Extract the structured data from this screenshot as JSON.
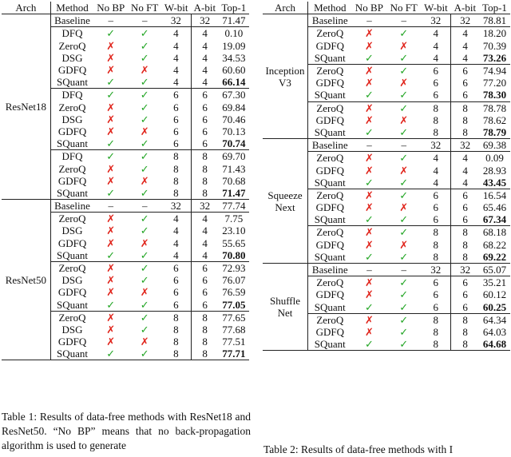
{
  "headers": {
    "arch": "Arch",
    "method": "Method",
    "no_bp": "No BP",
    "no_ft": "No FT",
    "w_bit": "W-bit",
    "a_bit": "A-bit",
    "top1": "Top-1"
  },
  "symbols": {
    "tick": "✓",
    "cross": "✗",
    "dash": "–"
  },
  "left_table": {
    "sections": [
      {
        "arch": "ResNet18",
        "groups": [
          {
            "rows": [
              {
                "method": "Baseline",
                "no_bp": "–",
                "no_ft": "–",
                "w": "32",
                "a": "32",
                "top1": "71.47",
                "bold": false
              }
            ]
          },
          {
            "rows": [
              {
                "method": "DFQ",
                "no_bp": "✓",
                "no_ft": "✓",
                "w": "4",
                "a": "4",
                "top1": "0.10",
                "bold": false
              },
              {
                "method": "ZeroQ",
                "no_bp": "✗",
                "no_ft": "✓",
                "w": "4",
                "a": "4",
                "top1": "19.09",
                "bold": false
              },
              {
                "method": "DSG",
                "no_bp": "✗",
                "no_ft": "✓",
                "w": "4",
                "a": "4",
                "top1": "34.53",
                "bold": false
              },
              {
                "method": "GDFQ",
                "no_bp": "✗",
                "no_ft": "✗",
                "w": "4",
                "a": "4",
                "top1": "60.60",
                "bold": false
              },
              {
                "method": "SQuant",
                "no_bp": "✓",
                "no_ft": "✓",
                "w": "4",
                "a": "4",
                "top1": "66.14",
                "bold": true
              }
            ]
          },
          {
            "rows": [
              {
                "method": "DFQ",
                "no_bp": "✓",
                "no_ft": "✓",
                "w": "6",
                "a": "6",
                "top1": "67.30",
                "bold": false
              },
              {
                "method": "ZeroQ",
                "no_bp": "✗",
                "no_ft": "✓",
                "w": "6",
                "a": "6",
                "top1": "69.84",
                "bold": false
              },
              {
                "method": "DSG",
                "no_bp": "✗",
                "no_ft": "✓",
                "w": "6",
                "a": "6",
                "top1": "70.46",
                "bold": false
              },
              {
                "method": "GDFQ",
                "no_bp": "✗",
                "no_ft": "✗",
                "w": "6",
                "a": "6",
                "top1": "70.13",
                "bold": false
              },
              {
                "method": "SQuant",
                "no_bp": "✓",
                "no_ft": "✓",
                "w": "6",
                "a": "6",
                "top1": "70.74",
                "bold": true
              }
            ]
          },
          {
            "rows": [
              {
                "method": "DFQ",
                "no_bp": "✓",
                "no_ft": "✓",
                "w": "8",
                "a": "8",
                "top1": "69.70",
                "bold": false
              },
              {
                "method": "ZeroQ",
                "no_bp": "✗",
                "no_ft": "✓",
                "w": "8",
                "a": "8",
                "top1": "71.43",
                "bold": false
              },
              {
                "method": "GDFQ",
                "no_bp": "✗",
                "no_ft": "✗",
                "w": "8",
                "a": "8",
                "top1": "70.68",
                "bold": false
              },
              {
                "method": "SQuant",
                "no_bp": "✓",
                "no_ft": "✓",
                "w": "8",
                "a": "8",
                "top1": "71.47",
                "bold": true
              }
            ]
          }
        ]
      },
      {
        "arch": "ResNet50",
        "groups": [
          {
            "rows": [
              {
                "method": "Baseline",
                "no_bp": "–",
                "no_ft": "–",
                "w": "32",
                "a": "32",
                "top1": "77.74",
                "bold": false
              }
            ]
          },
          {
            "rows": [
              {
                "method": "ZeroQ",
                "no_bp": "✗",
                "no_ft": "✓",
                "w": "4",
                "a": "4",
                "top1": "7.75",
                "bold": false
              },
              {
                "method": "DSG",
                "no_bp": "✗",
                "no_ft": "✓",
                "w": "4",
                "a": "4",
                "top1": "23.10",
                "bold": false
              },
              {
                "method": "GDFQ",
                "no_bp": "✗",
                "no_ft": "✗",
                "w": "4",
                "a": "4",
                "top1": "55.65",
                "bold": false
              },
              {
                "method": "SQuant",
                "no_bp": "✓",
                "no_ft": "✓",
                "w": "4",
                "a": "4",
                "top1": "70.80",
                "bold": true
              }
            ]
          },
          {
            "rows": [
              {
                "method": "ZeroQ",
                "no_bp": "✗",
                "no_ft": "✓",
                "w": "6",
                "a": "6",
                "top1": "72.93",
                "bold": false
              },
              {
                "method": "DSG",
                "no_bp": "✗",
                "no_ft": "✓",
                "w": "6",
                "a": "6",
                "top1": "76.07",
                "bold": false
              },
              {
                "method": "GDFQ",
                "no_bp": "✗",
                "no_ft": "✗",
                "w": "6",
                "a": "6",
                "top1": "76.59",
                "bold": false
              },
              {
                "method": "SQuant",
                "no_bp": "✓",
                "no_ft": "✓",
                "w": "6",
                "a": "6",
                "top1": "77.05",
                "bold": true
              }
            ]
          },
          {
            "rows": [
              {
                "method": "ZeroQ",
                "no_bp": "✗",
                "no_ft": "✓",
                "w": "8",
                "a": "8",
                "top1": "77.65",
                "bold": false
              },
              {
                "method": "DSG",
                "no_bp": "✗",
                "no_ft": "✓",
                "w": "8",
                "a": "8",
                "top1": "77.68",
                "bold": false
              },
              {
                "method": "GDFQ",
                "no_bp": "✗",
                "no_ft": "✗",
                "w": "8",
                "a": "8",
                "top1": "77.51",
                "bold": false
              },
              {
                "method": "SQuant",
                "no_bp": "✓",
                "no_ft": "✓",
                "w": "8",
                "a": "8",
                "top1": "77.71",
                "bold": true
              }
            ]
          }
        ]
      }
    ]
  },
  "right_table": {
    "sections": [
      {
        "arch": "Inception V3",
        "groups": [
          {
            "rows": [
              {
                "method": "Baseline",
                "no_bp": "–",
                "no_ft": "–",
                "w": "32",
                "a": "32",
                "top1": "78.81",
                "bold": false
              }
            ]
          },
          {
            "rows": [
              {
                "method": "ZeroQ",
                "no_bp": "✗",
                "no_ft": "✓",
                "w": "4",
                "a": "4",
                "top1": "18.20",
                "bold": false
              },
              {
                "method": "GDFQ",
                "no_bp": "✗",
                "no_ft": "✗",
                "w": "4",
                "a": "4",
                "top1": "70.39",
                "bold": false
              },
              {
                "method": "SQuant",
                "no_bp": "✓",
                "no_ft": "✓",
                "w": "4",
                "a": "4",
                "top1": "73.26",
                "bold": true
              }
            ]
          },
          {
            "rows": [
              {
                "method": "ZeroQ",
                "no_bp": "✗",
                "no_ft": "✓",
                "w": "6",
                "a": "6",
                "top1": "74.94",
                "bold": false
              },
              {
                "method": "GDFQ",
                "no_bp": "✗",
                "no_ft": "✗",
                "w": "6",
                "a": "6",
                "top1": "77.20",
                "bold": false
              },
              {
                "method": "SQuant",
                "no_bp": "✓",
                "no_ft": "✓",
                "w": "6",
                "a": "6",
                "top1": "78.30",
                "bold": true
              }
            ]
          },
          {
            "rows": [
              {
                "method": "ZeroQ",
                "no_bp": "✗",
                "no_ft": "✓",
                "w": "8",
                "a": "8",
                "top1": "78.78",
                "bold": false
              },
              {
                "method": "GDFQ",
                "no_bp": "✗",
                "no_ft": "✗",
                "w": "8",
                "a": "8",
                "top1": "78.62",
                "bold": false
              },
              {
                "method": "SQuant",
                "no_bp": "✓",
                "no_ft": "✓",
                "w": "8",
                "a": "8",
                "top1": "78.79",
                "bold": true
              }
            ]
          }
        ]
      },
      {
        "arch": "Squeeze Next",
        "groups": [
          {
            "rows": [
              {
                "method": "Baseline",
                "no_bp": "–",
                "no_ft": "–",
                "w": "32",
                "a": "32",
                "top1": "69.38",
                "bold": false
              }
            ]
          },
          {
            "rows": [
              {
                "method": "ZeroQ",
                "no_bp": "✗",
                "no_ft": "✓",
                "w": "4",
                "a": "4",
                "top1": "0.09",
                "bold": false
              },
              {
                "method": "GDFQ",
                "no_bp": "✗",
                "no_ft": "✗",
                "w": "4",
                "a": "4",
                "top1": "28.93",
                "bold": false
              },
              {
                "method": "SQuant",
                "no_bp": "✓",
                "no_ft": "✓",
                "w": "4",
                "a": "4",
                "top1": "43.45",
                "bold": true
              }
            ]
          },
          {
            "rows": [
              {
                "method": "ZeroQ",
                "no_bp": "✗",
                "no_ft": "✓",
                "w": "6",
                "a": "6",
                "top1": "16.54",
                "bold": false
              },
              {
                "method": "GDFQ",
                "no_bp": "✗",
                "no_ft": "✗",
                "w": "6",
                "a": "6",
                "top1": "65.46",
                "bold": false
              },
              {
                "method": "SQuant",
                "no_bp": "✓",
                "no_ft": "✓",
                "w": "6",
                "a": "6",
                "top1": "67.34",
                "bold": true
              }
            ]
          },
          {
            "rows": [
              {
                "method": "ZeroQ",
                "no_bp": "✗",
                "no_ft": "✓",
                "w": "8",
                "a": "8",
                "top1": "68.18",
                "bold": false
              },
              {
                "method": "GDFQ",
                "no_bp": "✗",
                "no_ft": "✗",
                "w": "8",
                "a": "8",
                "top1": "68.22",
                "bold": false
              },
              {
                "method": "SQuant",
                "no_bp": "✓",
                "no_ft": "✓",
                "w": "8",
                "a": "8",
                "top1": "69.22",
                "bold": true
              }
            ]
          }
        ]
      },
      {
        "arch": "Shuffle Net",
        "groups": [
          {
            "rows": [
              {
                "method": "Baseline",
                "no_bp": "–",
                "no_ft": "–",
                "w": "32",
                "a": "32",
                "top1": "65.07",
                "bold": false
              }
            ]
          },
          {
            "rows": [
              {
                "method": "ZeroQ",
                "no_bp": "✗",
                "no_ft": "✓",
                "w": "6",
                "a": "6",
                "top1": "35.21",
                "bold": false
              },
              {
                "method": "GDFQ",
                "no_bp": "✗",
                "no_ft": "✓",
                "w": "6",
                "a": "6",
                "top1": "60.12",
                "bold": false
              },
              {
                "method": "SQuant",
                "no_bp": "✓",
                "no_ft": "✓",
                "w": "6",
                "a": "6",
                "top1": "60.25",
                "bold": true
              }
            ]
          },
          {
            "rows": [
              {
                "method": "ZeroQ",
                "no_bp": "✗",
                "no_ft": "✓",
                "w": "8",
                "a": "8",
                "top1": "64.34",
                "bold": false
              },
              {
                "method": "GDFQ",
                "no_bp": "✗",
                "no_ft": "✓",
                "w": "8",
                "a": "8",
                "top1": "64.03",
                "bold": false
              },
              {
                "method": "SQuant",
                "no_bp": "✓",
                "no_ft": "✓",
                "w": "8",
                "a": "8",
                "top1": "64.68",
                "bold": true
              }
            ]
          }
        ]
      }
    ]
  },
  "caption_left": "Table 1: Results of data-free methods with ResNet18 and ResNet50. “No BP” means that no back-propagation algorithm is used to generate",
  "caption_right": "Table 2: Results of data-free methods with I"
}
